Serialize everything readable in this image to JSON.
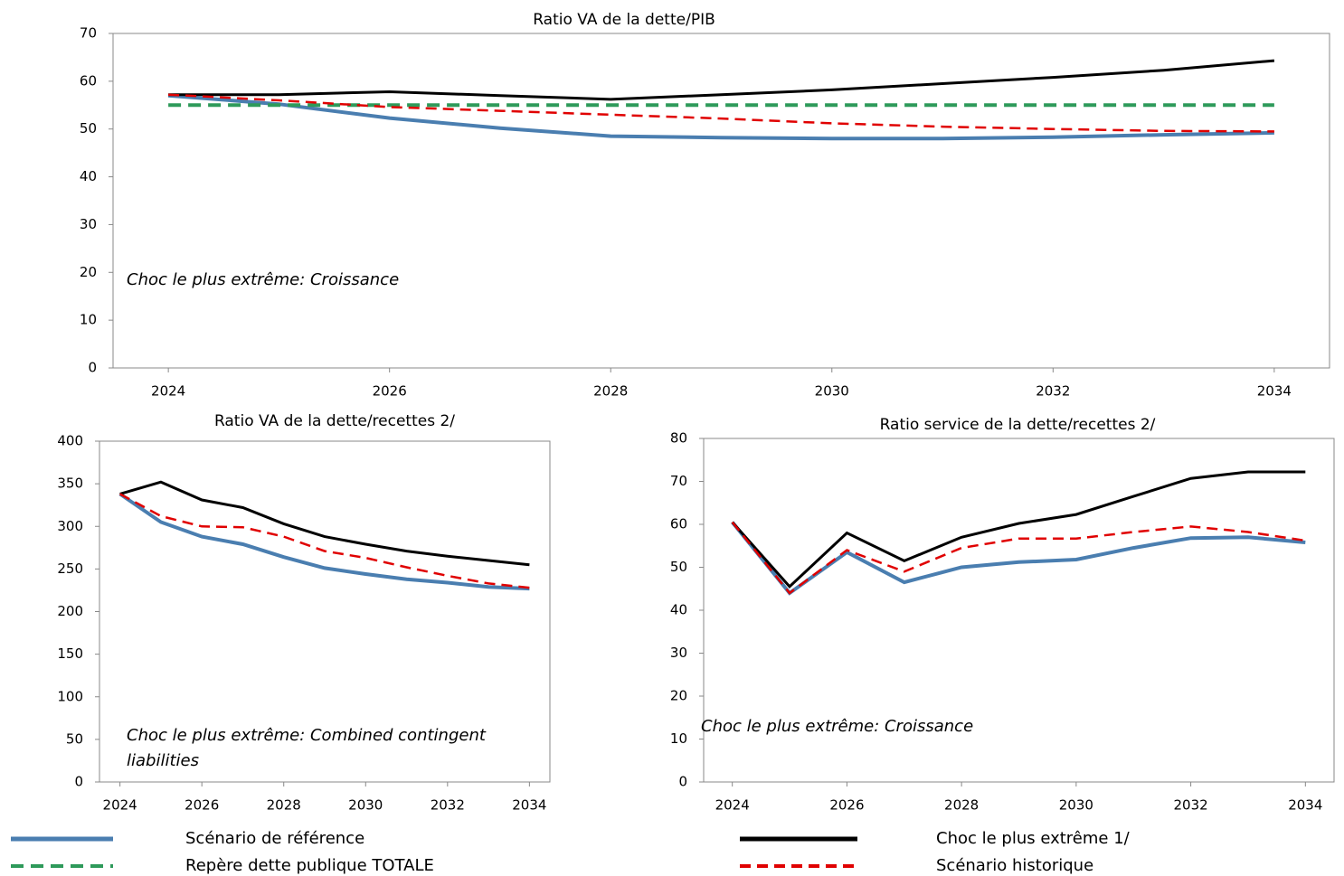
{
  "chart_data": [
    {
      "type": "line",
      "title": "Ratio VA de la dette/PIB",
      "annotation": "Choc le plus extrême: Croissance",
      "x": [
        2024,
        2025,
        2026,
        2027,
        2028,
        2029,
        2030,
        2031,
        2032,
        2033,
        2034
      ],
      "xlim": [
        2023.5,
        2034.5
      ],
      "xticks": [
        2024,
        2026,
        2028,
        2030,
        2032,
        2034
      ],
      "ylim": [
        0,
        70
      ],
      "yticks": [
        0,
        10,
        20,
        30,
        40,
        50,
        60,
        70
      ],
      "series": [
        {
          "name": "Scénario de référence",
          "color": "#4a7eb0",
          "dashed": false,
          "values": [
            57,
            55.2,
            52.3,
            50.2,
            48.5,
            48.2,
            48,
            48,
            48.3,
            48.8,
            49.2
          ]
        },
        {
          "name": "Repère dette publique TOTALE",
          "color": "#2e9a5a",
          "dashed": true,
          "values": [
            55,
            55,
            55,
            55,
            55,
            55,
            55,
            55,
            55,
            55,
            55
          ]
        },
        {
          "name": "Choc le plus extrême 1/",
          "color": "#000000",
          "dashed": false,
          "values": [
            57.2,
            57.2,
            57.8,
            57,
            56.2,
            57.2,
            58.2,
            59.5,
            60.8,
            62.3,
            64.3
          ]
        },
        {
          "name": "Scénario historique",
          "color": "#e00000",
          "dashed": true,
          "values": [
            57.2,
            56,
            54.6,
            53.8,
            53,
            52.2,
            51.2,
            50.5,
            50,
            49.6,
            49.5
          ]
        }
      ]
    },
    {
      "type": "line",
      "title": "Ratio VA de la dette/recettes 2/",
      "annotation": "Choc le plus extrême: Combined contingent liabilities",
      "x": [
        2024,
        2025,
        2026,
        2027,
        2028,
        2029,
        2030,
        2031,
        2032,
        2033,
        2034
      ],
      "xlim": [
        2023.5,
        2034.5
      ],
      "xticks": [
        2024,
        2026,
        2028,
        2030,
        2032,
        2034
      ],
      "ylim": [
        0,
        400
      ],
      "yticks": [
        0,
        50,
        100,
        150,
        200,
        250,
        300,
        350,
        400
      ],
      "series": [
        {
          "name": "Scénario de référence",
          "color": "#4a7eb0",
          "dashed": false,
          "values": [
            338,
            305,
            288,
            279,
            264,
            251,
            244,
            238,
            234,
            229,
            227
          ]
        },
        {
          "name": "Choc le plus extrême 1/",
          "color": "#000000",
          "dashed": false,
          "values": [
            338,
            352,
            331,
            322,
            303,
            288,
            279,
            271,
            265,
            260,
            255
          ]
        },
        {
          "name": "Scénario historique",
          "color": "#e00000",
          "dashed": true,
          "values": [
            338,
            312,
            300,
            299,
            288,
            271,
            263,
            252,
            242,
            233,
            228
          ]
        }
      ]
    },
    {
      "type": "line",
      "title": "Ratio service de la dette/recettes 2/",
      "annotation": "Choc le plus extrême: Croissance",
      "x": [
        2024,
        2025,
        2026,
        2027,
        2028,
        2029,
        2030,
        2031,
        2032,
        2033,
        2034
      ],
      "xlim": [
        2023.5,
        2034.5
      ],
      "xticks": [
        2024,
        2026,
        2028,
        2030,
        2032,
        2034
      ],
      "ylim": [
        0,
        80
      ],
      "yticks": [
        0,
        10,
        20,
        30,
        40,
        50,
        60,
        70,
        80
      ],
      "series": [
        {
          "name": "Scénario de référence",
          "color": "#4a7eb0",
          "dashed": false,
          "values": [
            60.5,
            44,
            53.5,
            46.5,
            50,
            51.2,
            51.8,
            54.5,
            56.8,
            57,
            55.8
          ]
        },
        {
          "name": "Choc le plus extrême 1/",
          "color": "#000000",
          "dashed": false,
          "values": [
            60.5,
            45.5,
            58,
            51.5,
            57,
            60.2,
            62.3,
            66.5,
            70.7,
            72.2,
            72.2
          ]
        },
        {
          "name": "Scénario historique",
          "color": "#e00000",
          "dashed": true,
          "values": [
            60.5,
            44,
            54,
            49,
            54.5,
            56.7,
            56.7,
            58.2,
            59.5,
            58.2,
            56.2
          ]
        }
      ]
    }
  ]
}
